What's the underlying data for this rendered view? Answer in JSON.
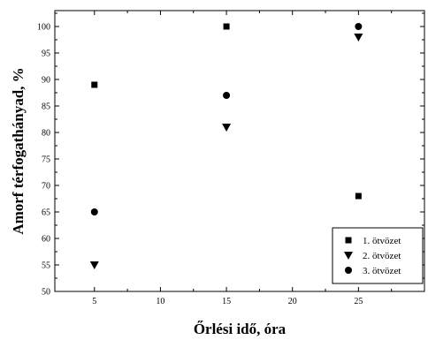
{
  "chart_data": {
    "type": "scatter",
    "xlabel": "Őrlési idő, óra",
    "ylabel": "Amorf térfogathányad, %",
    "xlim": [
      2,
      30
    ],
    "ylim": [
      50,
      103
    ],
    "x_ticks": [
      5,
      10,
      15,
      20,
      25
    ],
    "y_ticks": [
      50,
      55,
      60,
      65,
      70,
      75,
      80,
      85,
      90,
      95,
      100
    ],
    "grid": false,
    "legend_position": "bottom-right",
    "series": [
      {
        "name": "1. ötvözet",
        "marker": "square",
        "color": "#000000",
        "x": [
          5,
          15,
          25
        ],
        "y": [
          89,
          100,
          68
        ]
      },
      {
        "name": "2. ötvözet",
        "marker": "triangle-down",
        "color": "#000000",
        "x": [
          5,
          15,
          25
        ],
        "y": [
          55,
          81,
          98
        ]
      },
      {
        "name": "3. ötvözet",
        "marker": "circle",
        "color": "#000000",
        "x": [
          5,
          15,
          25
        ],
        "y": [
          65,
          87,
          100
        ]
      }
    ]
  }
}
